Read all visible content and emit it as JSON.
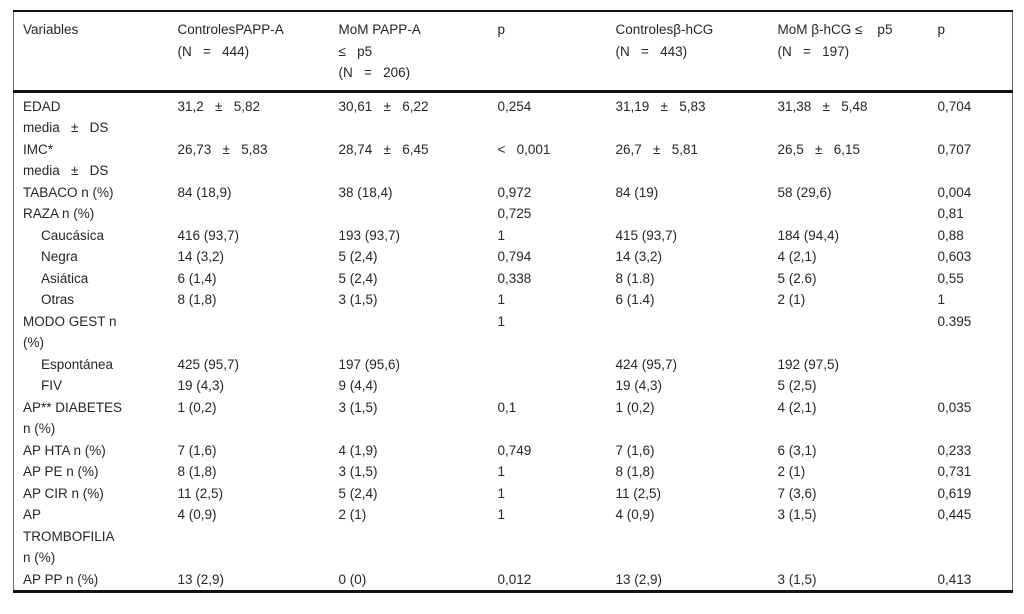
{
  "page": {
    "background": "#ffffff",
    "text_color": "#262626",
    "rule_color": "#111111",
    "side_rule_color": "#6f6f6f"
  },
  "table": {
    "header": [
      {
        "text": "Variables"
      },
      {
        "text": "ControlesPAPP-A\n(N   =   444)"
      },
      {
        "text": "MoM PAPP-A\n≤   p5\n(N   =   206)"
      },
      {
        "text": "p"
      },
      {
        "text": "Controlesβ-hCG\n(N   =   443)"
      },
      {
        "text": "MoM β-hCG ≤    p5\n(N   =   197)"
      },
      {
        "text": "p"
      }
    ],
    "rows": [
      {
        "label": "EDAD\nmedia   ±   DS",
        "indent": false,
        "cells": [
          "31,2   ±   5,82",
          "30,61   ±   6,22",
          "0,254",
          "31,19   ±   5,83",
          "31,38   ±   5,48",
          "0,704"
        ]
      },
      {
        "label": "IMC*\nmedia   ±   DS",
        "indent": false,
        "cells": [
          "26,73   ±   5,83",
          "28,74   ±   6,45",
          "<   0,001",
          "26,7   ±   5,81",
          "26,5   ±   6,15",
          "0,707"
        ]
      },
      {
        "label": "TABACO n (%)",
        "indent": false,
        "cells": [
          "84 (18,9)",
          "38 (18,4)",
          "0,972",
          "84 (19)",
          "58 (29,6)",
          "0,004"
        ]
      },
      {
        "label": "RAZA n (%)",
        "indent": false,
        "cells": [
          "",
          "",
          "0,725",
          "",
          "",
          "0,81"
        ]
      },
      {
        "label": "Caucásica",
        "indent": true,
        "cells": [
          "416 (93,7)",
          "193 (93,7)",
          "1",
          "415 (93,7)",
          "184 (94,4)",
          "0,88"
        ]
      },
      {
        "label": "Negra",
        "indent": true,
        "cells": [
          "14 (3,2)",
          "5 (2,4)",
          "0,794",
          "14 (3,2)",
          "4 (2,1)",
          "0,603"
        ]
      },
      {
        "label": "Asiática",
        "indent": true,
        "cells": [
          "6 (1,4)",
          "5 (2,4)",
          "0,338",
          "8 (1.8)",
          "5 (2.6)",
          "0,55"
        ]
      },
      {
        "label": "Otras",
        "indent": true,
        "cells": [
          "8 (1,8)",
          "3 (1,5)",
          "1",
          "6 (1.4)",
          "2 (1)",
          "1"
        ]
      },
      {
        "label": "MODO GEST n\n(%)",
        "indent": false,
        "cells": [
          "",
          "",
          "1",
          "",
          "",
          "0.395"
        ]
      },
      {
        "label": "Espontánea",
        "indent": true,
        "cells": [
          "425 (95,7)",
          "197 (95,6)",
          "",
          "424 (95,7)",
          "192 (97,5)",
          ""
        ]
      },
      {
        "label": "FIV",
        "indent": true,
        "cells": [
          "19 (4,3)",
          "9 (4,4)",
          "",
          "19 (4,3)",
          "5 (2,5)",
          ""
        ]
      },
      {
        "label": "AP** DIABETES\nn (%)",
        "indent": false,
        "cells": [
          "1 (0,2)",
          "3 (1,5)",
          "0,1",
          "1 (0,2)",
          "4 (2,1)",
          "0,035"
        ]
      },
      {
        "label": "AP HTA n (%)",
        "indent": false,
        "cells": [
          "7 (1,6)",
          "4 (1,9)",
          "0,749",
          "7 (1,6)",
          "6 (3,1)",
          "0,233"
        ]
      },
      {
        "label": "AP PE n (%)",
        "indent": false,
        "cells": [
          "8 (1,8)",
          "3 (1,5)",
          "1",
          "8 (1,8)",
          "2 (1)",
          "0,731"
        ]
      },
      {
        "label": "AP CIR n (%)",
        "indent": false,
        "cells": [
          "11 (2,5)",
          "5 (2,4)",
          "1",
          "11 (2,5)",
          "7 (3,6)",
          "0,619"
        ]
      },
      {
        "label": "AP\nTROMBOFILIA\nn (%)",
        "indent": false,
        "cells": [
          "4 (0,9)",
          "2 (1)",
          "1",
          "4 (0,9)",
          "3 (1,5)",
          "0,445"
        ]
      },
      {
        "label": "AP PP n (%)",
        "indent": false,
        "cells": [
          "13 (2,9)",
          "0 (0)",
          "0,012",
          "13 (2,9)",
          "3 (1,5)",
          "0,413"
        ]
      }
    ]
  }
}
